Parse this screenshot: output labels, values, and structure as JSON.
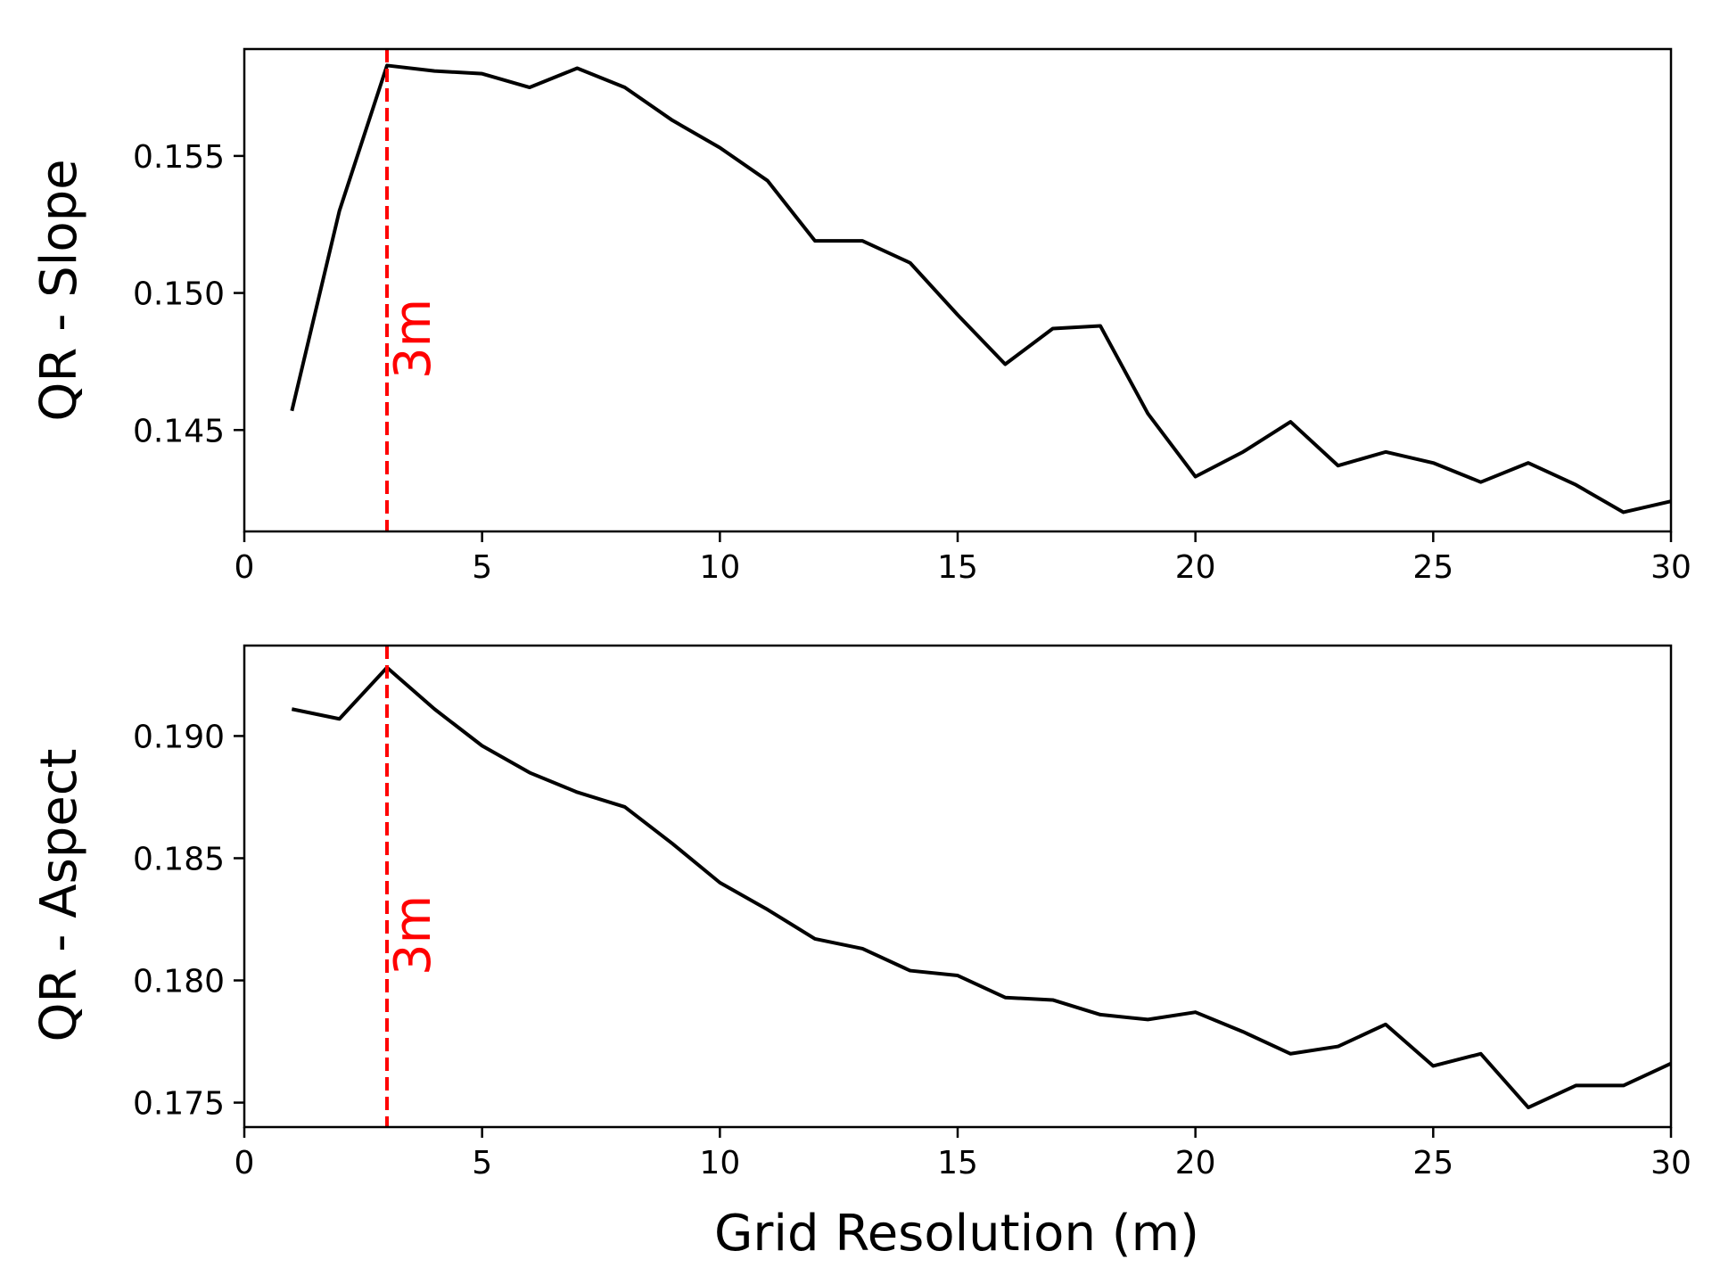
{
  "colors": {
    "line": "#000000",
    "marker": "#ff0000",
    "background": "#ffffff"
  },
  "xlabel": "Grid Resolution (m)",
  "chart_data": [
    {
      "type": "line",
      "ylabel": "QR - Slope",
      "xlim": [
        0,
        30
      ],
      "ylim": [
        0.1413,
        0.1589
      ],
      "x_ticks": [
        0,
        5,
        10,
        15,
        20,
        25,
        30
      ],
      "x_tick_labels": [
        "0",
        "5",
        "10",
        "15",
        "20",
        "25",
        "30"
      ],
      "y_ticks": [
        0.145,
        0.15,
        0.155
      ],
      "y_tick_labels": [
        "0.145",
        "0.150",
        "0.155"
      ],
      "grid": false,
      "series": [
        {
          "x": [
            1,
            2,
            3,
            4,
            5,
            6,
            7,
            8,
            9,
            10,
            11,
            12,
            13,
            14,
            15,
            16,
            17,
            18,
            19,
            20,
            21,
            22,
            23,
            24,
            25,
            26,
            27,
            28,
            29,
            30
          ],
          "values": [
            0.1457,
            0.153,
            0.1583,
            0.1581,
            0.158,
            0.1575,
            0.1582,
            0.1575,
            0.1563,
            0.1553,
            0.1541,
            0.1519,
            0.1519,
            0.1511,
            0.1492,
            0.1474,
            0.1487,
            0.1488,
            0.1456,
            0.1433,
            0.1442,
            0.1453,
            0.1437,
            0.1442,
            0.1438,
            0.1431,
            0.1438,
            0.143,
            0.142,
            0.1424
          ]
        }
      ],
      "vline": {
        "x": 3,
        "label": "3m"
      }
    },
    {
      "type": "line",
      "ylabel": "QR - Aspect",
      "xlim": [
        0,
        30
      ],
      "ylim": [
        0.174,
        0.1937
      ],
      "x_ticks": [
        0,
        5,
        10,
        15,
        20,
        25,
        30
      ],
      "x_tick_labels": [
        "0",
        "5",
        "10",
        "15",
        "20",
        "25",
        "30"
      ],
      "y_ticks": [
        0.175,
        0.18,
        0.185,
        0.19
      ],
      "y_tick_labels": [
        "0.175",
        "0.180",
        "0.185",
        "0.190"
      ],
      "grid": false,
      "series": [
        {
          "x": [
            1,
            2,
            3,
            4,
            5,
            6,
            7,
            8,
            9,
            10,
            11,
            12,
            13,
            14,
            15,
            16,
            17,
            18,
            19,
            20,
            21,
            22,
            23,
            24,
            25,
            26,
            27,
            28,
            29,
            30
          ],
          "values": [
            0.1911,
            0.1907,
            0.1928,
            0.1911,
            0.1896,
            0.1885,
            0.1877,
            0.1871,
            0.1856,
            0.184,
            0.1829,
            0.1817,
            0.1813,
            0.1804,
            0.1802,
            0.1793,
            0.1792,
            0.1786,
            0.1784,
            0.1787,
            0.1779,
            0.177,
            0.1773,
            0.1782,
            0.1765,
            0.177,
            0.1748,
            0.1757,
            0.1757,
            0.1766
          ]
        }
      ],
      "vline": {
        "x": 3,
        "label": "3m"
      }
    }
  ]
}
